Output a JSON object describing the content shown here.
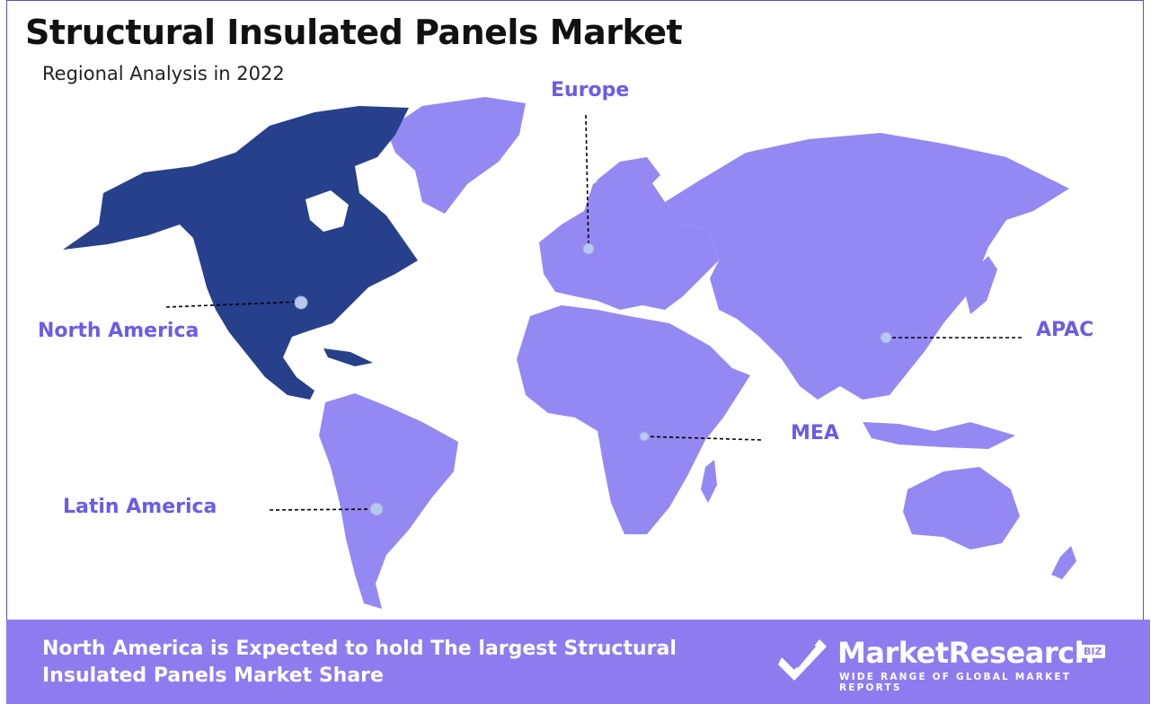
{
  "header": {
    "title": "Structural Insulated Panels Market",
    "subtitle": "Regional Analysis in 2022"
  },
  "regions": [
    {
      "name": "North America",
      "highlighted": true
    },
    {
      "name": "Europe",
      "highlighted": false
    },
    {
      "name": "APAC",
      "highlighted": false
    },
    {
      "name": "MEA",
      "highlighted": false
    },
    {
      "name": "Latin America",
      "highlighted": false
    }
  ],
  "colors": {
    "highlight": "#27408b",
    "land": "#9489f2",
    "label": "#6a5ce6",
    "footer": "#8f7bf0"
  },
  "footer": {
    "message": "North America is Expected to hold The largest Structural Insulated Panels Market Share"
  },
  "brand": {
    "name": "MarketResearch",
    "badge": "BIZ",
    "tagline": "WIDE RANGE OF GLOBAL MARKET REPORTS"
  }
}
